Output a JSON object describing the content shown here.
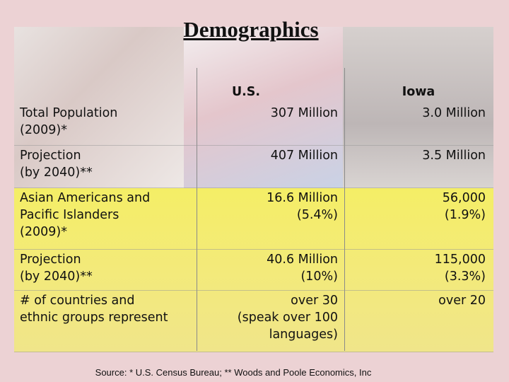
{
  "title": "Demographics",
  "table": {
    "header": [
      "",
      "U.S.",
      "Iowa"
    ],
    "rows": [
      [
        [
          "Total Population",
          "(2009)*"
        ],
        [
          "307 Million"
        ],
        [
          "3.0 Million"
        ]
      ],
      [
        [
          "Projection",
          "(by 2040)**"
        ],
        [
          "407 Million"
        ],
        [
          "3.5 Million"
        ]
      ],
      [
        [
          "Asian Americans and",
          "Pacific Islanders",
          "(2009)*"
        ],
        [
          "16.6 Million",
          "(5.4%)"
        ],
        [
          "56,000",
          "(1.9%)"
        ]
      ],
      [
        [
          "Projection",
          "(by 2040)**"
        ],
        [
          "40.6 Million",
          "(10%)"
        ],
        [
          "115,000",
          "(3.3%)"
        ]
      ],
      [
        [
          "# of countries and",
          "ethnic groups represent"
        ],
        [
          "over 30",
          "(speak over 100",
          "languages)"
        ],
        [
          "over 20"
        ]
      ]
    ]
  },
  "source": "Source: * U.S. Census Bureau; ** Woods and Poole Economics, Inc"
}
